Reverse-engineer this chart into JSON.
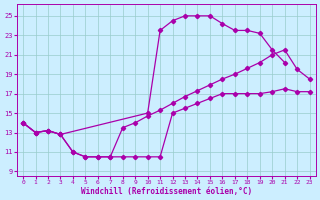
{
  "xlabel": "Windchill (Refroidissement éolien,°C)",
  "bg_color": "#cceeff",
  "grid_color": "#99cccc",
  "line_color": "#aa00aa",
  "xlim": [
    -0.5,
    23.5
  ],
  "ylim": [
    8.5,
    26.2
  ],
  "xticks": [
    0,
    1,
    2,
    3,
    4,
    5,
    6,
    7,
    8,
    9,
    10,
    11,
    12,
    13,
    14,
    15,
    16,
    17,
    18,
    19,
    20,
    21,
    22,
    23
  ],
  "yticks": [
    9,
    11,
    13,
    15,
    17,
    19,
    21,
    23,
    25
  ],
  "curve_top_x": [
    0,
    1,
    2,
    3,
    10,
    11,
    12,
    13,
    14,
    15,
    16,
    17,
    18,
    19,
    20,
    21
  ],
  "curve_top_y": [
    14.0,
    13.0,
    13.2,
    12.8,
    15.0,
    23.5,
    24.5,
    25.0,
    25.0,
    25.0,
    24.2,
    23.5,
    23.5,
    23.2,
    21.5,
    20.2
  ],
  "curve_mid_x": [
    0,
    1,
    2,
    3,
    4,
    5,
    6,
    7,
    8,
    9,
    10,
    11,
    12,
    13,
    14,
    15,
    16,
    17,
    18,
    19,
    20,
    21,
    22,
    23
  ],
  "curve_mid_y": [
    14.0,
    13.0,
    13.2,
    12.8,
    11.0,
    10.5,
    10.5,
    10.5,
    13.5,
    14.0,
    14.7,
    15.3,
    16.0,
    16.7,
    17.3,
    17.9,
    18.5,
    19.0,
    19.6,
    20.2,
    21.0,
    21.5,
    19.5,
    18.5
  ],
  "curve_bot_x": [
    0,
    1,
    2,
    3,
    4,
    5,
    6,
    7,
    8,
    9,
    10,
    11,
    12,
    13,
    14,
    15,
    16,
    17,
    18,
    19,
    20,
    21,
    22,
    23
  ],
  "curve_bot_y": [
    14.0,
    13.0,
    13.2,
    12.8,
    11.0,
    10.5,
    10.5,
    10.5,
    10.5,
    10.5,
    10.5,
    10.5,
    15.0,
    15.5,
    16.0,
    16.5,
    17.0,
    17.0,
    17.0,
    17.0,
    17.2,
    17.5,
    17.2,
    17.2
  ]
}
